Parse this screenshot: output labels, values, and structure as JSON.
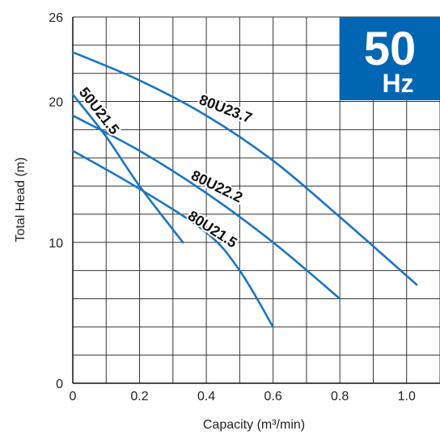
{
  "chart_data": {
    "type": "line",
    "title": "",
    "xlabel": "Capacity (m³/min)",
    "ylabel": "Total Head (m)",
    "xlim": [
      0,
      1.1
    ],
    "ylim": [
      0,
      26
    ],
    "x_ticks": [
      "0",
      "0.2",
      "0.4",
      "0.6",
      "0.8",
      "1.0",
      "1."
    ],
    "y_ticks": [
      "0",
      "10",
      "20",
      "26"
    ],
    "grid": true,
    "badge": {
      "main": "50",
      "unit": "Hz",
      "color": "#0066b3"
    },
    "line_color": "#1a75c2",
    "series": [
      {
        "name": "80U23.7",
        "x": [
          0,
          0.2,
          0.4,
          0.6,
          0.8,
          1.03
        ],
        "y": [
          23.5,
          21.5,
          19,
          15.8,
          11.8,
          7
        ]
      },
      {
        "name": "80U22.2",
        "x": [
          0,
          0.2,
          0.4,
          0.6,
          0.8
        ],
        "y": [
          19,
          16.5,
          13.5,
          10,
          6
        ]
      },
      {
        "name": "80U21.5",
        "x": [
          0,
          0.2,
          0.4,
          0.5,
          0.6
        ],
        "y": [
          16.5,
          13.8,
          10.7,
          8,
          4
        ]
      },
      {
        "name": "50U21.5",
        "x": [
          0,
          0.1,
          0.2,
          0.33
        ],
        "y": [
          20.5,
          17.5,
          14,
          10
        ]
      }
    ]
  }
}
